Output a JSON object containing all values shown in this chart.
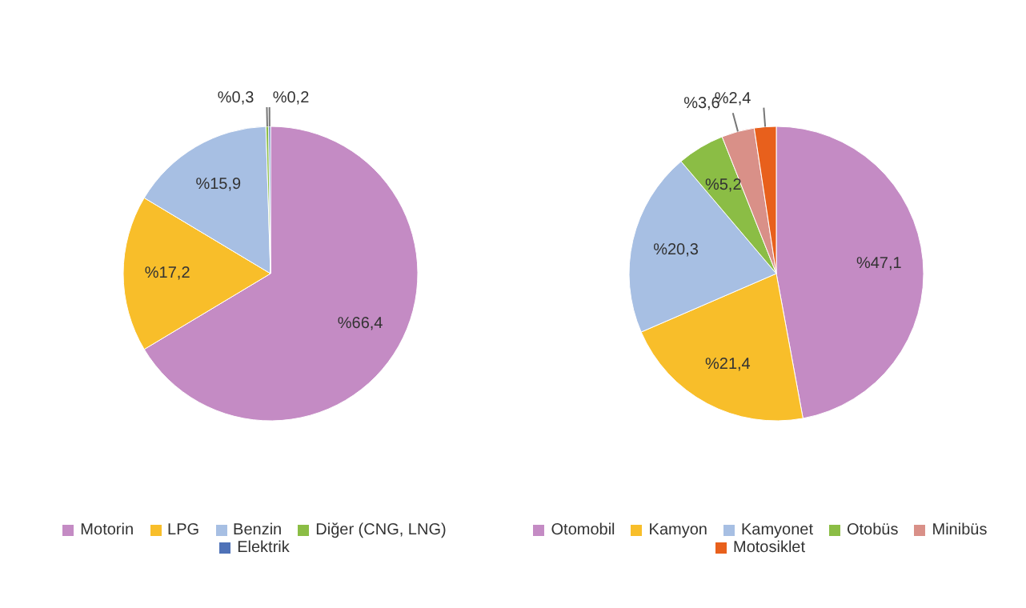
{
  "chart_data": [
    {
      "type": "pie",
      "categories": [
        "Motorin",
        "LPG",
        "Benzin",
        "Diğer (CNG, LNG)",
        "Elektrik"
      ],
      "values": [
        66.4,
        17.2,
        15.9,
        0.3,
        0.2
      ],
      "colors": [
        "#c48bc4",
        "#f8be2a",
        "#a7bfe3",
        "#8bbd45",
        "#4f72b8"
      ],
      "value_labels": [
        "%66,4",
        "%17,2",
        "%15,9",
        "%0,3",
        "%0,2"
      ],
      "legend": "bottom"
    },
    {
      "type": "pie",
      "categories": [
        "Otomobil",
        "Kamyon",
        "Kamyonet",
        "Otobüs",
        "Minibüs",
        "Motosiklet"
      ],
      "values": [
        47.1,
        21.4,
        20.3,
        5.2,
        3.6,
        2.4
      ],
      "colors": [
        "#c48bc4",
        "#f8be2a",
        "#a7bfe3",
        "#8bbd45",
        "#d99088",
        "#e8601c"
      ],
      "value_labels": [
        "%47,1",
        "%21,4",
        "%20,3",
        "%5,2",
        "%3,6",
        "%2,4"
      ],
      "legend": "bottom"
    }
  ]
}
